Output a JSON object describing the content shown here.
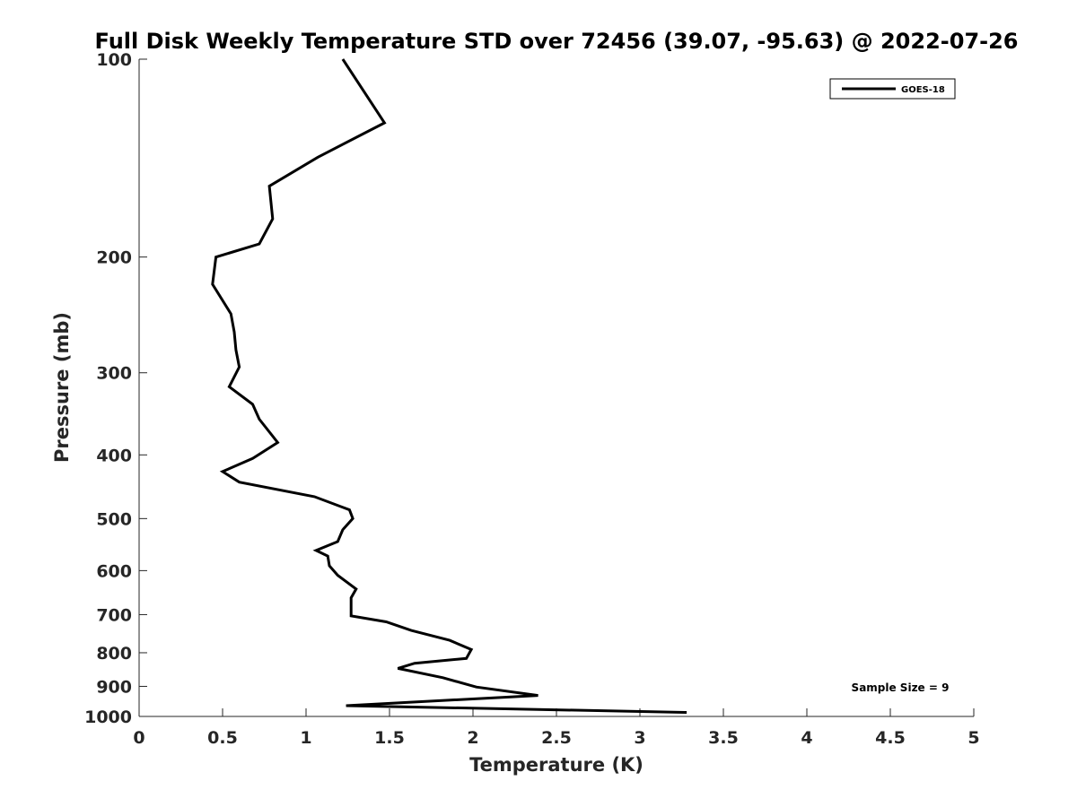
{
  "chart_data": {
    "type": "line",
    "title": "Full Disk Weekly Temperature STD over 72456 (39.07, -95.63) @ 2022-07-26",
    "xlabel": "Temperature (K)",
    "ylabel": "Pressure (mb)",
    "xlim": [
      0,
      5
    ],
    "ylim": [
      100,
      1000
    ],
    "y_scale": "log",
    "y_reversed": true,
    "xticks": [
      "0",
      "0.5",
      "1",
      "1.5",
      "2",
      "2.5",
      "3",
      "3.5",
      "4",
      "4.5",
      "5"
    ],
    "yticks": [
      "100",
      "200",
      "300",
      "400",
      "500",
      "600",
      "700",
      "800",
      "900",
      "1000"
    ],
    "grid": false,
    "legend_position": "top-right",
    "series": [
      {
        "name": "GOES-18",
        "color": "#000000",
        "points": [
          [
            1.22,
            100
          ],
          [
            1.47,
            125
          ],
          [
            1.07,
            141
          ],
          [
            0.78,
            156
          ],
          [
            0.8,
            175
          ],
          [
            0.72,
            191
          ],
          [
            0.46,
            200
          ],
          [
            0.44,
            220
          ],
          [
            0.55,
            244
          ],
          [
            0.57,
            260
          ],
          [
            0.58,
            277
          ],
          [
            0.6,
            294
          ],
          [
            0.54,
            315
          ],
          [
            0.68,
            335
          ],
          [
            0.72,
            353
          ],
          [
            0.83,
            383
          ],
          [
            0.68,
            405
          ],
          [
            0.5,
            424
          ],
          [
            0.6,
            440
          ],
          [
            1.05,
            463
          ],
          [
            1.26,
            485
          ],
          [
            1.28,
            500
          ],
          [
            1.22,
            520
          ],
          [
            1.19,
            542
          ],
          [
            1.06,
            559
          ],
          [
            1.13,
            570
          ],
          [
            1.14,
            590
          ],
          [
            1.19,
            610
          ],
          [
            1.3,
            640
          ],
          [
            1.27,
            660
          ],
          [
            1.27,
            703
          ],
          [
            1.48,
            718
          ],
          [
            1.63,
            740
          ],
          [
            1.86,
            766
          ],
          [
            1.99,
            791
          ],
          [
            1.96,
            816
          ],
          [
            1.65,
            830
          ],
          [
            1.55,
            845
          ],
          [
            1.82,
            873
          ],
          [
            2.02,
            902
          ],
          [
            2.39,
            929
          ],
          [
            1.24,
            963
          ],
          [
            3.28,
            986
          ]
        ]
      }
    ],
    "annotations": [
      "Sample Size = 9"
    ]
  }
}
